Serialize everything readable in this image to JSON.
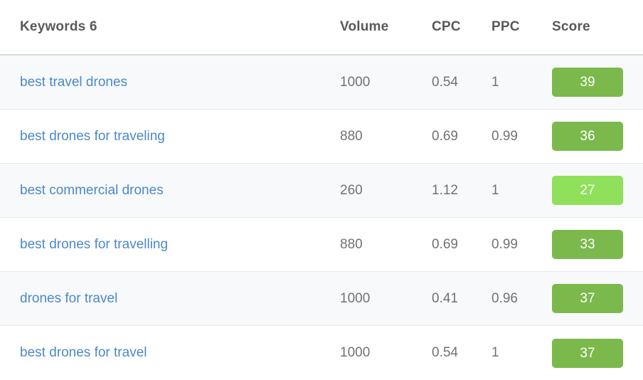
{
  "colors": {
    "link_blue": "#4a89c8",
    "header_text": "#58595b",
    "number_text": "#6f7275",
    "row_alt_background": "#f8f9fb",
    "row_divider": "#e7e9ed",
    "score_green": "#7bb94c",
    "score_light_green": "#8fe05a"
  },
  "table": {
    "header": {
      "keyword": "Keywords 6",
      "volume": "Volume",
      "cpc": "CPC",
      "ppc": "PPC",
      "score": "Score"
    },
    "rows": [
      {
        "keyword": "best travel drones",
        "volume": "1000",
        "cpc": "0.54",
        "ppc": "1",
        "score": "39",
        "score_color": "#7bb94c"
      },
      {
        "keyword": "best drones for traveling",
        "volume": "880",
        "cpc": "0.69",
        "ppc": "0.99",
        "score": "36",
        "score_color": "#7bb94c"
      },
      {
        "keyword": "best commercial drones",
        "volume": "260",
        "cpc": "1.12",
        "ppc": "1",
        "score": "27",
        "score_color": "#8fe05a"
      },
      {
        "keyword": "best drones for travelling",
        "volume": "880",
        "cpc": "0.69",
        "ppc": "0.99",
        "score": "33",
        "score_color": "#7bb94c"
      },
      {
        "keyword": "drones for travel",
        "volume": "1000",
        "cpc": "0.41",
        "ppc": "0.96",
        "score": "37",
        "score_color": "#7bb94c"
      },
      {
        "keyword": "best drones for travel",
        "volume": "1000",
        "cpc": "0.54",
        "ppc": "1",
        "score": "37",
        "score_color": "#7bb94c"
      }
    ]
  }
}
